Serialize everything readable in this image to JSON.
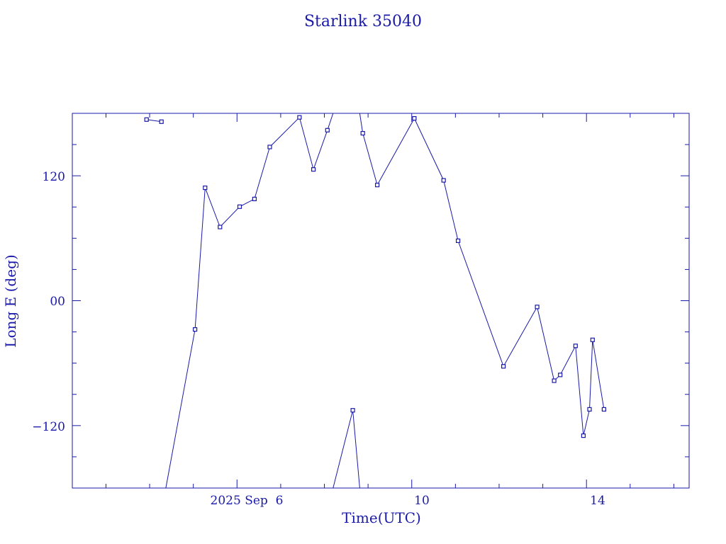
{
  "chart_data": {
    "type": "line",
    "title": "Starlink 35040",
    "xlabel": "Time(UTC)",
    "ylabel": "Long E (deg)",
    "x_tick_labels": [
      "2025 Sep  6",
      "10",
      "14"
    ],
    "y_tick_labels": [
      "120",
      "00",
      "−120"
    ],
    "xlim": [
      2.23,
      16.35
    ],
    "ylim": [
      -180,
      180
    ],
    "grid": false,
    "color": "#1a1aa8",
    "series": [
      {
        "points": [
          [
            3.93,
            174
          ],
          [
            4.27,
            172
          ]
        ]
      },
      {
        "points": [
          [
            4.37,
            -180
          ],
          [
            5.04,
            -27.6
          ],
          [
            5.27,
            108.5
          ],
          [
            5.61,
            70.8
          ],
          [
            6.06,
            90.3
          ],
          [
            6.4,
            97.7
          ],
          [
            6.75,
            147.7
          ],
          [
            7.43,
            176.1
          ],
          [
            7.75,
            126.1
          ],
          [
            8.07,
            163.8
          ],
          [
            8.2,
            180
          ]
        ]
      },
      {
        "points": [
          [
            8.2,
            -180
          ],
          [
            8.65,
            -105.3
          ],
          [
            8.81,
            -180
          ]
        ]
      },
      {
        "points": [
          [
            8.81,
            180
          ],
          [
            8.88,
            160.9
          ],
          [
            9.21,
            111.1
          ],
          [
            10.06,
            175.2
          ],
          [
            10.73,
            115.6
          ],
          [
            11.06,
            57.6
          ],
          [
            12.1,
            -63.1
          ],
          [
            12.87,
            -6.0
          ],
          [
            13.26,
            -76.9
          ],
          [
            13.4,
            -71.3
          ],
          [
            13.75,
            -43.4
          ],
          [
            13.93,
            -129.7
          ],
          [
            14.07,
            -104.4
          ],
          [
            14.14,
            -37.6
          ],
          [
            14.4,
            -104.4
          ]
        ]
      }
    ]
  }
}
